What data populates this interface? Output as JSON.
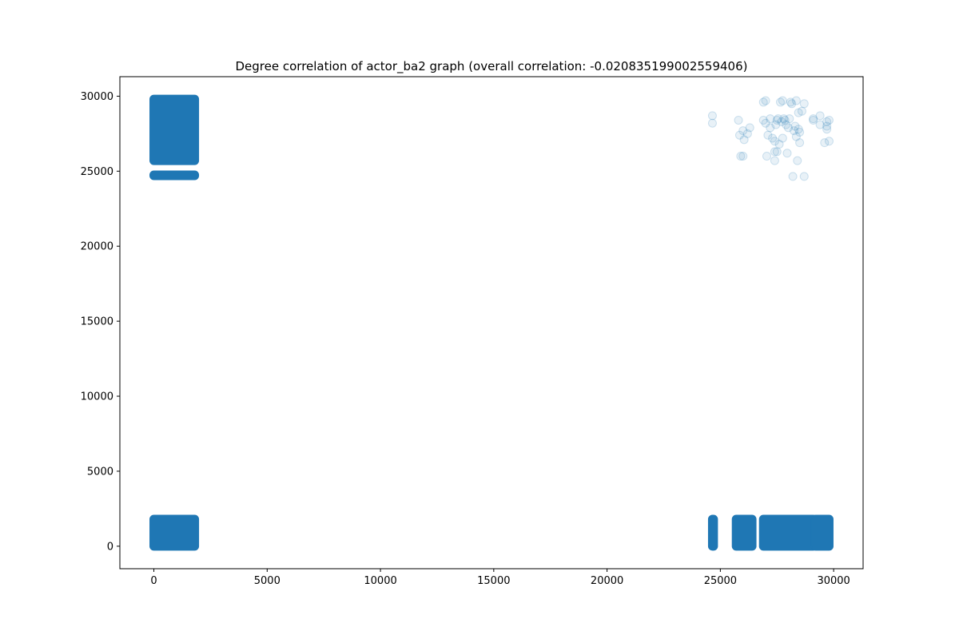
{
  "chart_data": {
    "type": "scatter",
    "title": "Degree correlation of actor_ba2 graph (overall correlation: -0.020835199002559406)",
    "xlabel": "",
    "ylabel": "",
    "xlim": [
      -1500,
      31300
    ],
    "ylim": [
      -1500,
      31300
    ],
    "xticks": [
      0,
      5000,
      10000,
      15000,
      20000,
      25000,
      30000
    ],
    "yticks": [
      0,
      5000,
      10000,
      15000,
      20000,
      25000,
      30000
    ],
    "grid": false,
    "marker_color": "#1f77b4",
    "marker_alpha": 0.1,
    "dense_regions": [
      {
        "x": [
          0,
          1800
        ],
        "y": [
          0,
          1800
        ]
      },
      {
        "x": [
          0,
          1800
        ],
        "y": [
          24700,
          24750
        ]
      },
      {
        "x": [
          0,
          1800
        ],
        "y": [
          25700,
          29800
        ]
      },
      {
        "x": [
          24650,
          24700
        ],
        "y": [
          0,
          1800
        ]
      },
      {
        "x": [
          25700,
          26400
        ],
        "y": [
          0,
          1800
        ]
      },
      {
        "x": [
          26900,
          29100
        ],
        "y": [
          0,
          1800
        ]
      },
      {
        "x": [
          29200,
          29800
        ],
        "y": [
          0,
          1800
        ]
      }
    ],
    "sparse_points": [
      [
        24650,
        28700
      ],
      [
        24650,
        28200
      ],
      [
        25800,
        28400
      ],
      [
        25850,
        27400
      ],
      [
        25900,
        26000
      ],
      [
        26000,
        26000
      ],
      [
        26000,
        27700
      ],
      [
        26050,
        27100
      ],
      [
        26200,
        27500
      ],
      [
        26300,
        27900
      ],
      [
        26900,
        28400
      ],
      [
        26900,
        29600
      ],
      [
        27000,
        29700
      ],
      [
        27000,
        28200
      ],
      [
        27050,
        26000
      ],
      [
        27100,
        27400
      ],
      [
        27200,
        28500
      ],
      [
        27200,
        27900
      ],
      [
        27300,
        27200
      ],
      [
        27400,
        27000
      ],
      [
        27400,
        26300
      ],
      [
        27400,
        25700
      ],
      [
        27450,
        28100
      ],
      [
        27500,
        28400
      ],
      [
        27500,
        26300
      ],
      [
        27550,
        28500
      ],
      [
        27600,
        26800
      ],
      [
        27650,
        29600
      ],
      [
        27700,
        28300
      ],
      [
        27750,
        27200
      ],
      [
        27750,
        29700
      ],
      [
        27800,
        28500
      ],
      [
        27850,
        28400
      ],
      [
        27900,
        28100
      ],
      [
        27950,
        26200
      ],
      [
        28000,
        27900
      ],
      [
        28050,
        28500
      ],
      [
        28100,
        29600
      ],
      [
        28150,
        29500
      ],
      [
        28200,
        24650
      ],
      [
        28250,
        27700
      ],
      [
        28300,
        28000
      ],
      [
        28350,
        29700
      ],
      [
        28350,
        27300
      ],
      [
        28400,
        25700
      ],
      [
        28450,
        28900
      ],
      [
        28450,
        27800
      ],
      [
        28500,
        26900
      ],
      [
        28500,
        27600
      ],
      [
        28600,
        29000
      ],
      [
        28700,
        24650
      ],
      [
        28700,
        29500
      ],
      [
        29100,
        28400
      ],
      [
        29100,
        28500
      ],
      [
        29400,
        28700
      ],
      [
        29400,
        28100
      ],
      [
        29600,
        26900
      ],
      [
        29700,
        27800
      ],
      [
        29700,
        28000
      ],
      [
        29700,
        28300
      ],
      [
        29800,
        27000
      ],
      [
        29800,
        28400
      ]
    ]
  }
}
